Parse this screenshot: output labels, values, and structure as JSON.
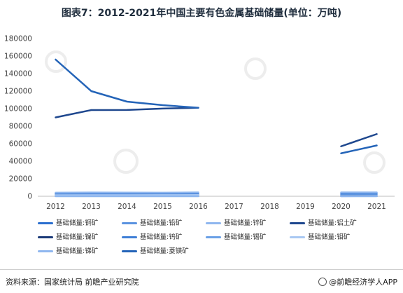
{
  "header": {
    "title": "图表7：2012-2021年中国主要有色金属基础储量(单位：万吨)"
  },
  "footer": {
    "source": "资料来源：国家统计局 前瞻产业研究院",
    "brand": "@前瞻经济学人APP"
  },
  "colors": {
    "c1": "#2b6fcf",
    "c2": "#5b93e0",
    "c3": "#8fb7ef",
    "c4": "#1e478e",
    "c5": "#1b3a78",
    "c6": "#3f7fd6",
    "c7": "#6aa0e6",
    "c8": "#a9c8f2",
    "c9": "#2464b8"
  },
  "chart_data": {
    "type": "line",
    "categories": [
      "2012",
      "2013",
      "2014",
      "2015",
      "2016",
      "2017",
      "2018",
      "2019",
      "2020",
      "2021"
    ],
    "ylim": [
      0,
      180000
    ],
    "yticks": [
      "0",
      "20000",
      "40000",
      "60000",
      "80000",
      "100000",
      "120000",
      "140000",
      "160000",
      "180000"
    ],
    "series": [
      {
        "name": "基础储量:铜矿",
        "values": [
          2900,
          3000,
          2900,
          2800,
          2700,
          null,
          null,
          null,
          2700,
          3500
        ],
        "color": "#2b6fcf"
      },
      {
        "name": "基础储量:铅矿",
        "values": [
          1700,
          1800,
          1700,
          1600,
          1800,
          null,
          null,
          null,
          1800,
          2000
        ],
        "color": "#5b93e0"
      },
      {
        "name": "基础储量:锌矿",
        "values": [
          4100,
          4300,
          4200,
          4100,
          4400,
          null,
          null,
          null,
          4400,
          4400
        ],
        "color": "#8fb7ef"
      },
      {
        "name": "基础储量:铝土矿",
        "values": [
          90000,
          98400,
          98500,
          100100,
          101000,
          null,
          null,
          null,
          57000,
          71000
        ],
        "color": "#1e478e"
      },
      {
        "name": "基础储量:镍矿",
        "values": [
          300,
          300,
          300,
          300,
          300,
          null,
          null,
          null,
          400,
          400
        ],
        "color": "#1b3a78"
      },
      {
        "name": "基础储量:钨矿",
        "values": [
          200,
          200,
          200,
          200,
          200,
          null,
          null,
          null,
          300,
          300
        ],
        "color": "#3f7fd6"
      },
      {
        "name": "基础储量:锡矿",
        "values": [
          100,
          100,
          100,
          100,
          100,
          null,
          null,
          null,
          100,
          100
        ],
        "color": "#6aa0e6"
      },
      {
        "name": "基础储量:钼矿",
        "values": [
          1100,
          1200,
          1200,
          1300,
          1400,
          null,
          null,
          null,
          300,
          400
        ],
        "color": "#a9c8f2"
      },
      {
        "name": "基础储量:锑矿",
        "values": [
          100,
          100,
          100,
          100,
          100,
          null,
          null,
          null,
          50,
          70
        ],
        "color": "#8fb7ef"
      },
      {
        "name": "基础储量:菱镁矿",
        "values": [
          156000,
          120000,
          108000,
          104000,
          101000,
          null,
          null,
          null,
          49000,
          58000
        ],
        "color": "#2464b8"
      }
    ]
  }
}
